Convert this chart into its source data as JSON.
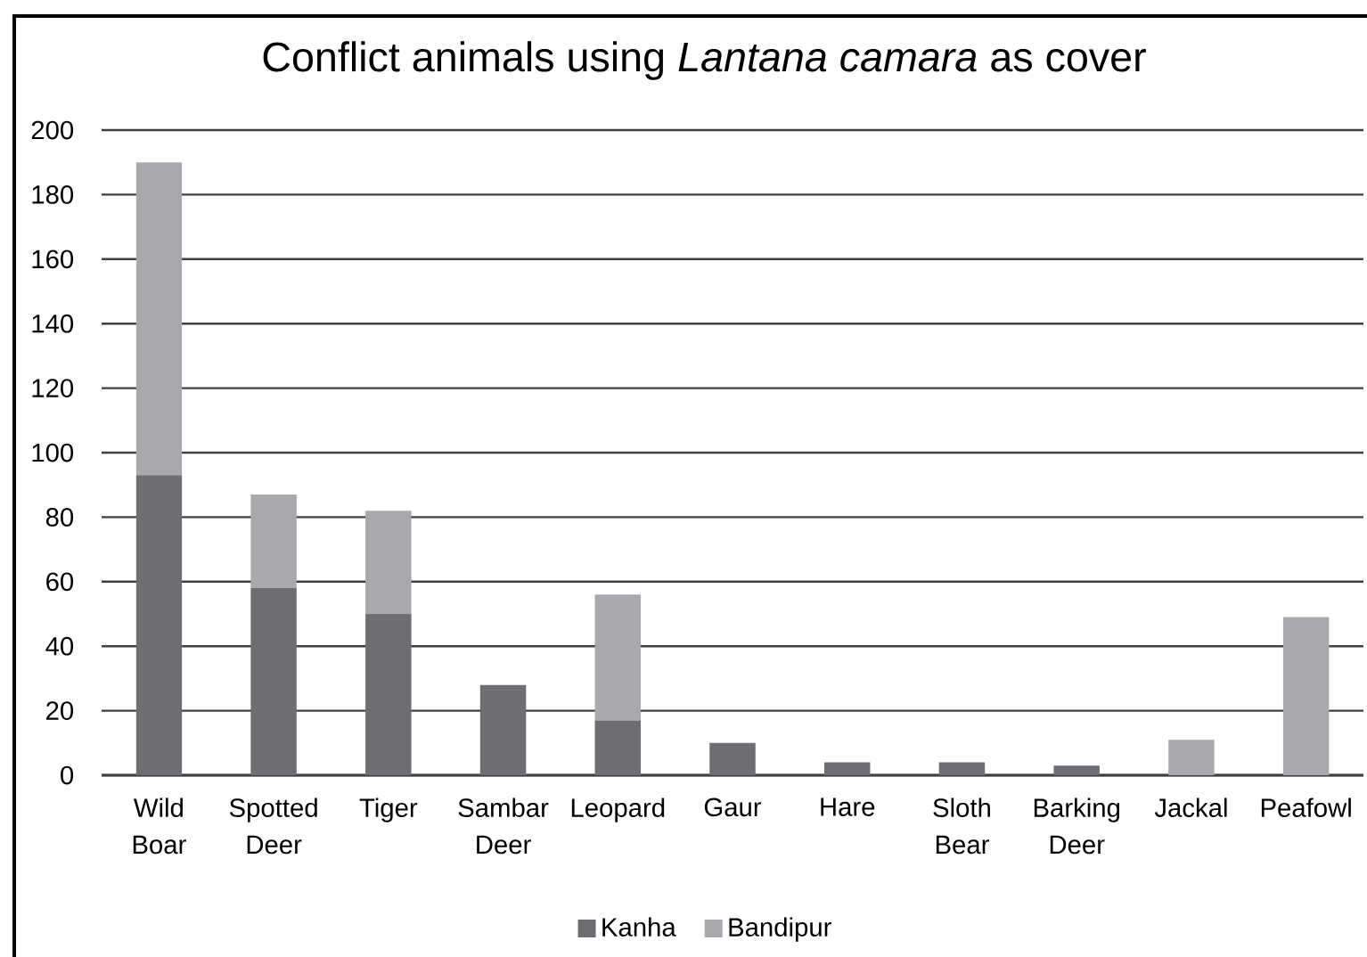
{
  "chart_data": {
    "type": "bar",
    "title": "Conflict animals using *Lantana camara* as cover",
    "categories": [
      "Wild Boar",
      "Spotted Deer",
      "Tiger",
      "Sambar Deer",
      "Leopard",
      "Gaur",
      "Hare",
      "Sloth Bear",
      "Barking Deer",
      "Jackal",
      "Peafowl"
    ],
    "series": [
      {
        "name": "Kanha",
        "color": "#6d6e71",
        "values": [
          93,
          58,
          50,
          28,
          17,
          10,
          4,
          4,
          3,
          0,
          0
        ]
      },
      {
        "name": "Bandipur",
        "color": "#a7a9ac",
        "values": [
          97,
          29,
          32,
          0,
          39,
          0,
          0,
          0,
          0,
          11,
          49
        ]
      }
    ],
    "stacked": true,
    "ylim": [
      0,
      200
    ],
    "yticks": [
      0,
      20,
      40,
      60,
      80,
      100,
      120,
      140,
      160,
      180,
      200
    ],
    "grid": "y",
    "legend": "bottom"
  }
}
